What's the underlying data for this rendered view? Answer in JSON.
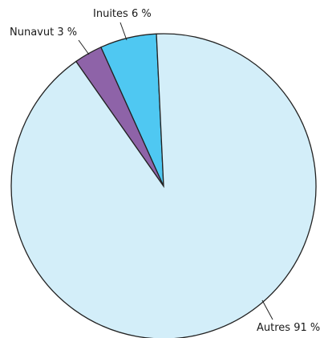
{
  "chart_data": {
    "type": "pie",
    "categories": [
      "Inuites",
      "Nunavut",
      "Autres"
    ],
    "values": [
      6,
      3,
      91
    ],
    "value_labels": [
      "6 %",
      "3 %",
      "91 %"
    ],
    "colors": [
      "#4fc8f2",
      "#8e63a8",
      "#d3eef9"
    ]
  }
}
